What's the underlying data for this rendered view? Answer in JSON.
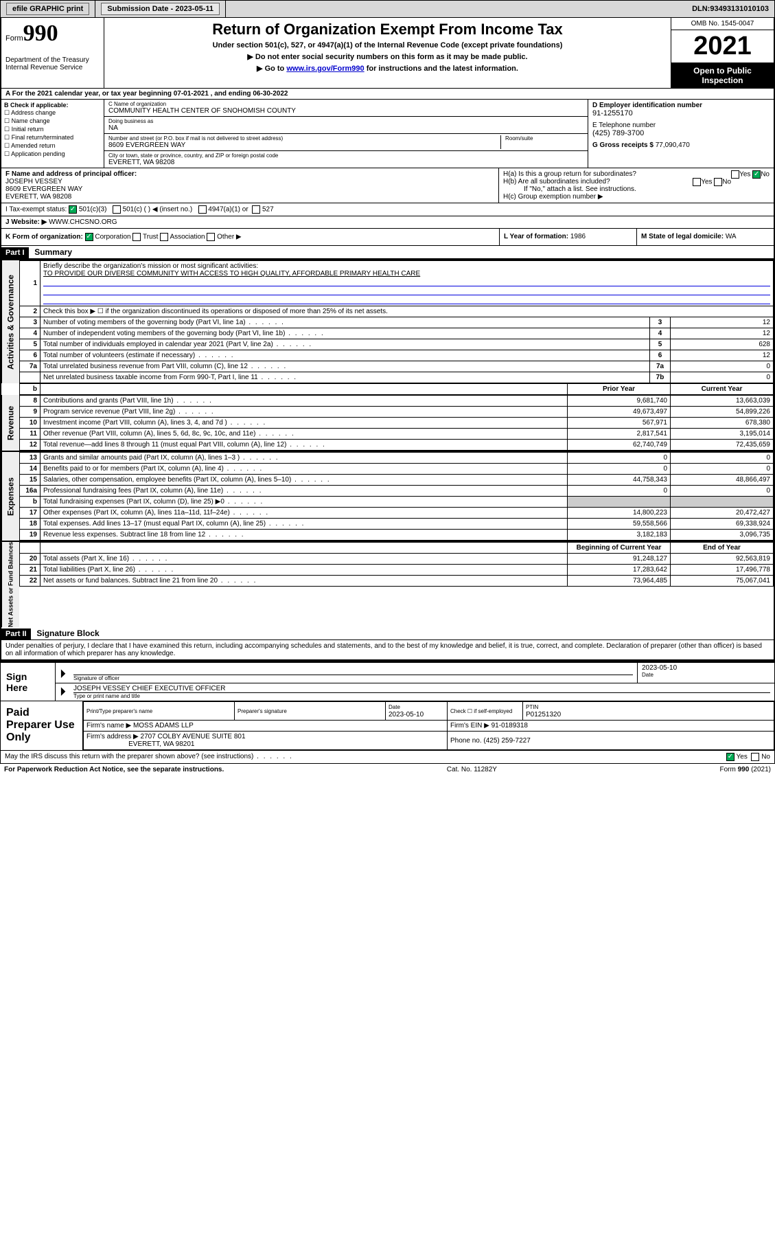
{
  "topbar": {
    "efile": "efile GRAPHIC print",
    "submission_label": "Submission Date - ",
    "submission_date": "2023-05-11",
    "dln_label": "DLN: ",
    "dln": "93493131010103"
  },
  "header": {
    "form_word": "Form",
    "form_no": "990",
    "title": "Return of Organization Exempt From Income Tax",
    "sub1": "Under section 501(c), 527, or 4947(a)(1) of the Internal Revenue Code (except private foundations)",
    "sub2": "Do not enter social security numbers on this form as it may be made public.",
    "sub3_pre": "Go to ",
    "sub3_link": "www.irs.gov/Form990",
    "sub3_post": " for instructions and the latest information.",
    "dept": "Department of the Treasury\nInternal Revenue Service",
    "omb": "OMB No. 1545-0047",
    "year": "2021",
    "open": "Open to Public Inspection"
  },
  "rowA": "A For the 2021 calendar year, or tax year beginning 07-01-2021  , and ending 06-30-2022",
  "colB": {
    "title": "B Check if applicable:",
    "items": [
      "Address change",
      "Name change",
      "Initial return",
      "Final return/terminated",
      "Amended return",
      "Application pending"
    ]
  },
  "entity": {
    "c_lbl": "C Name of organization",
    "c_val": "COMMUNITY HEALTH CENTER OF SNOHOMISH COUNTY",
    "dba_lbl": "Doing business as",
    "dba_val": "NA",
    "street_lbl": "Number and street (or P.O. box if mail is not delivered to street address)",
    "street_val": "8609 EVERGREEN WAY",
    "room_lbl": "Room/suite",
    "city_lbl": "City or town, state or province, country, and ZIP or foreign postal code",
    "city_val": "EVERETT, WA  98208",
    "d_lbl": "D Employer identification number",
    "ein": "91-1255170",
    "e_lbl": "E Telephone number",
    "phone": "(425) 789-3700",
    "g_lbl": "G Gross receipts $ ",
    "gross": "77,090,470"
  },
  "blockFH": {
    "f_lbl": "F Name and address of principal officer:",
    "f_name": "JOSEPH VESSEY",
    "f_addr1": "8609 EVERGREEN WAY",
    "f_addr2": "EVERETT, WA  98208",
    "ha": "H(a)  Is this a group return for subordinates?",
    "hb": "H(b)  Are all subordinates included?",
    "hb_note": "If \"No,\" attach a list. See instructions.",
    "hc": "H(c)  Group exemption number ▶",
    "yes": "Yes",
    "no": "No"
  },
  "rowI": {
    "lead": "I    Tax-exempt status:",
    "o1": "501(c)(3)",
    "o2": "501(c) (  ) ◀ (insert no.)",
    "o3": "4947(a)(1) or",
    "o4": "527"
  },
  "rowJ": {
    "lead": "J   Website: ▶",
    "val": " WWW.CHCSNO.ORG"
  },
  "rowK": {
    "lead": "K Form of organization:",
    "o1": "Corporation",
    "o2": "Trust",
    "o3": "Association",
    "o4": "Other ▶",
    "l_lbl": "L Year of formation: ",
    "l_val": "1986",
    "m_lbl": "M State of legal domicile: ",
    "m_val": "WA"
  },
  "part1": {
    "bar": "Part I",
    "title": "Summary"
  },
  "summary": {
    "q1_lbl": "Briefly describe the organization's mission or most significant activities:",
    "q1_val": "TO PROVIDE OUR DIVERSE COMMUNITY WITH ACCESS TO HIGH QUALITY, AFFORDABLE PRIMARY HEALTH CARE",
    "q2": "Check this box ▶ ☐  if the organization discontinued its operations or disposed of more than 25% of its net assets.",
    "rows_gov": [
      {
        "n": "3",
        "t": "Number of voting members of the governing body (Part VI, line 1a)",
        "box": "3",
        "v": "12"
      },
      {
        "n": "4",
        "t": "Number of independent voting members of the governing body (Part VI, line 1b)",
        "box": "4",
        "v": "12"
      },
      {
        "n": "5",
        "t": "Total number of individuals employed in calendar year 2021 (Part V, line 2a)",
        "box": "5",
        "v": "628"
      },
      {
        "n": "6",
        "t": "Total number of volunteers (estimate if necessary)",
        "box": "6",
        "v": "12"
      },
      {
        "n": "7a",
        "t": "Total unrelated business revenue from Part VIII, column (C), line 12",
        "box": "7a",
        "v": "0"
      },
      {
        "n": "",
        "t": "Net unrelated business taxable income from Form 990-T, Part I, line 11",
        "box": "7b",
        "v": "0"
      }
    ],
    "b_hdr": "b",
    "prior_hdr": "Prior Year",
    "curr_hdr": "Current Year",
    "rev_rows": [
      {
        "n": "8",
        "t": "Contributions and grants (Part VIII, line 1h)",
        "p": "9,681,740",
        "c": "13,663,039"
      },
      {
        "n": "9",
        "t": "Program service revenue (Part VIII, line 2g)",
        "p": "49,673,497",
        "c": "54,899,226"
      },
      {
        "n": "10",
        "t": "Investment income (Part VIII, column (A), lines 3, 4, and 7d )",
        "p": "567,971",
        "c": "678,380"
      },
      {
        "n": "11",
        "t": "Other revenue (Part VIII, column (A), lines 5, 6d, 8c, 9c, 10c, and 11e)",
        "p": "2,817,541",
        "c": "3,195,014"
      },
      {
        "n": "12",
        "t": "Total revenue—add lines 8 through 11 (must equal Part VIII, column (A), line 12)",
        "p": "62,740,749",
        "c": "72,435,659"
      }
    ],
    "exp_rows": [
      {
        "n": "13",
        "t": "Grants and similar amounts paid (Part IX, column (A), lines 1–3 )",
        "p": "0",
        "c": "0"
      },
      {
        "n": "14",
        "t": "Benefits paid to or for members (Part IX, column (A), line 4)",
        "p": "0",
        "c": "0"
      },
      {
        "n": "15",
        "t": "Salaries, other compensation, employee benefits (Part IX, column (A), lines 5–10)",
        "p": "44,758,343",
        "c": "48,866,497"
      },
      {
        "n": "16a",
        "t": "Professional fundraising fees (Part IX, column (A), line 11e)",
        "p": "0",
        "c": "0"
      },
      {
        "n": "b",
        "t": "Total fundraising expenses (Part IX, column (D), line 25) ▶0",
        "p": "",
        "c": "",
        "grey": true
      },
      {
        "n": "17",
        "t": "Other expenses (Part IX, column (A), lines 11a–11d, 11f–24e)",
        "p": "14,800,223",
        "c": "20,472,427"
      },
      {
        "n": "18",
        "t": "Total expenses. Add lines 13–17 (must equal Part IX, column (A), line 25)",
        "p": "59,558,566",
        "c": "69,338,924"
      },
      {
        "n": "19",
        "t": "Revenue less expenses. Subtract line 18 from line 12",
        "p": "3,182,183",
        "c": "3,096,735"
      }
    ],
    "na_hdr1": "Beginning of Current Year",
    "na_hdr2": "End of Year",
    "na_rows": [
      {
        "n": "20",
        "t": "Total assets (Part X, line 16)",
        "p": "91,248,127",
        "c": "92,563,819"
      },
      {
        "n": "21",
        "t": "Total liabilities (Part X, line 26)",
        "p": "17,283,642",
        "c": "17,496,778"
      },
      {
        "n": "22",
        "t": "Net assets or fund balances. Subtract line 21 from line 20",
        "p": "73,964,485",
        "c": "75,067,041"
      }
    ],
    "side_gov": "Activities & Governance",
    "side_rev": "Revenue",
    "side_exp": "Expenses",
    "side_na": "Net Assets or Fund Balances"
  },
  "part2": {
    "bar": "Part II",
    "title": "Signature Block"
  },
  "sig": {
    "perjury": "Under penalties of perjury, I declare that I have examined this return, including accompanying schedules and statements, and to the best of my knowledge and belief, it is true, correct, and complete. Declaration of preparer (other than officer) is based on all information of which preparer has any knowledge.",
    "sign_here": "Sign Here",
    "sig_officer": "Signature of officer",
    "date": "Date",
    "sig_date": "2023-05-10",
    "name_title": "JOSEPH VESSEY CHIEF EXECUTIVE OFFICER",
    "name_lbl": "Type or print name and title"
  },
  "prep": {
    "title": "Paid Preparer Use Only",
    "h1": "Print/Type preparer's name",
    "h2": "Preparer's signature",
    "h3": "Date",
    "h3v": "2023-05-10",
    "h4": "Check ☐ if self-employed",
    "h5": "PTIN",
    "h5v": "P01251320",
    "firm_lbl": "Firm's name   ▶ ",
    "firm": "MOSS ADAMS LLP",
    "ein_lbl": "Firm's EIN ▶ ",
    "ein": "91-0189318",
    "addr_lbl": "Firm's address ▶ ",
    "addr1": "2707 COLBY AVENUE SUITE 801",
    "addr2": "EVERETT, WA  98201",
    "phone_lbl": "Phone no. ",
    "phone": "(425) 259-7227",
    "discuss": "May the IRS discuss this return with the preparer shown above? (see instructions)",
    "yes": "Yes",
    "no": "No"
  },
  "footer": {
    "pra": "For Paperwork Reduction Act Notice, see the separate instructions.",
    "cat": "Cat. No. 11282Y",
    "form": "Form 990 (2021)"
  }
}
